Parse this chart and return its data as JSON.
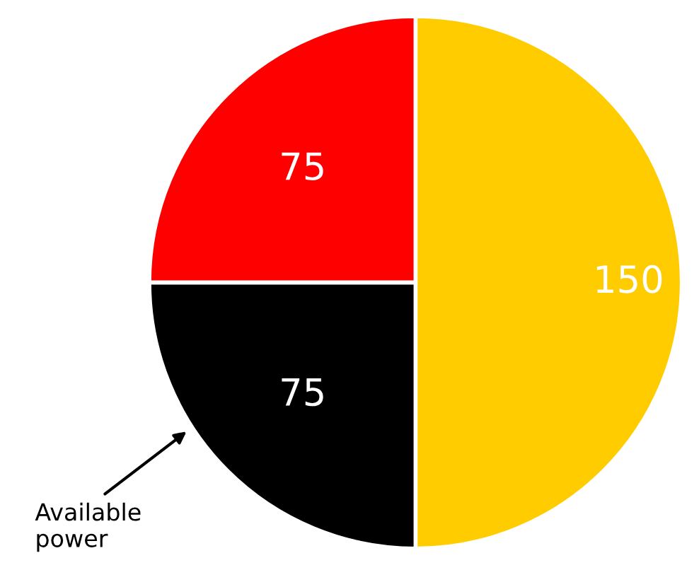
{
  "chart_data": {
    "type": "pie",
    "categories": [
      null,
      null,
      null
    ],
    "values": [
      150,
      75,
      75
    ],
    "colors": [
      "#ffcc00",
      "#000000",
      "#ff0000"
    ],
    "data_labels": true,
    "annotations": [
      "Available\npower"
    ]
  }
}
